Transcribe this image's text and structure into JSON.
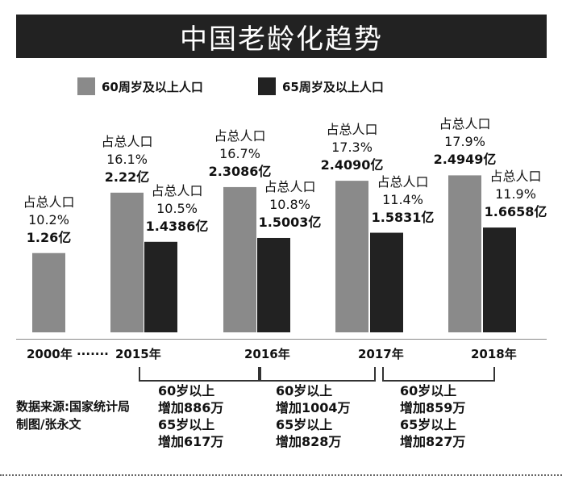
{
  "title": "中国老龄化趋势",
  "legend": [
    {
      "label": "60周岁及以上人口",
      "color": "#8a8a8a"
    },
    {
      "label": "65周岁及以上人口",
      "color": "#222222"
    }
  ],
  "chart_data": {
    "type": "bar",
    "categories": [
      "2000年 ·······",
      "2015年",
      "2016年",
      "2017年",
      "2018年"
    ],
    "series": [
      {
        "name": "60周岁及以上人口",
        "values": [
          1.26,
          2.22,
          2.3086,
          2.409,
          2.4949
        ],
        "labels": [
          {
            "top": "占总人口",
            "pct": "10.2%",
            "val": "1.26亿"
          },
          {
            "top": "占总人口",
            "pct": "16.1%",
            "val": "2.22亿"
          },
          {
            "top": "占总人口",
            "pct": "16.7%",
            "val": "2.3086亿"
          },
          {
            "top": "占总人口",
            "pct": "17.3%",
            "val": "2.4090亿"
          },
          {
            "top": "占总人口",
            "pct": "17.9%",
            "val": "2.4949亿"
          }
        ]
      },
      {
        "name": "65周岁及以上人口",
        "values": [
          null,
          1.4386,
          1.5003,
          1.5831,
          1.6658
        ],
        "labels": [
          null,
          {
            "top": "占总人口",
            "pct": "10.5%",
            "val": "1.4386亿"
          },
          {
            "top": "占总人口",
            "pct": "10.8%",
            "val": "1.5003亿"
          },
          {
            "top": "占总人口",
            "pct": "11.4%",
            "val": "1.5831亿"
          },
          {
            "top": "占总人口",
            "pct": "11.9%",
            "val": "1.6658亿"
          }
        ]
      }
    ],
    "increases": [
      {
        "lines": [
          "60岁以上",
          "增加886万",
          "65岁以上",
          "增加617万"
        ]
      },
      {
        "lines": [
          "60岁以上",
          "增加1004万",
          "65岁以上",
          "增加828万"
        ]
      },
      {
        "lines": [
          "60岁以上",
          "增加859万",
          "65岁以上",
          "增加827万"
        ]
      }
    ]
  },
  "source": {
    "line1": "数据来源:国家统计局",
    "line2": "制图/张永文"
  }
}
